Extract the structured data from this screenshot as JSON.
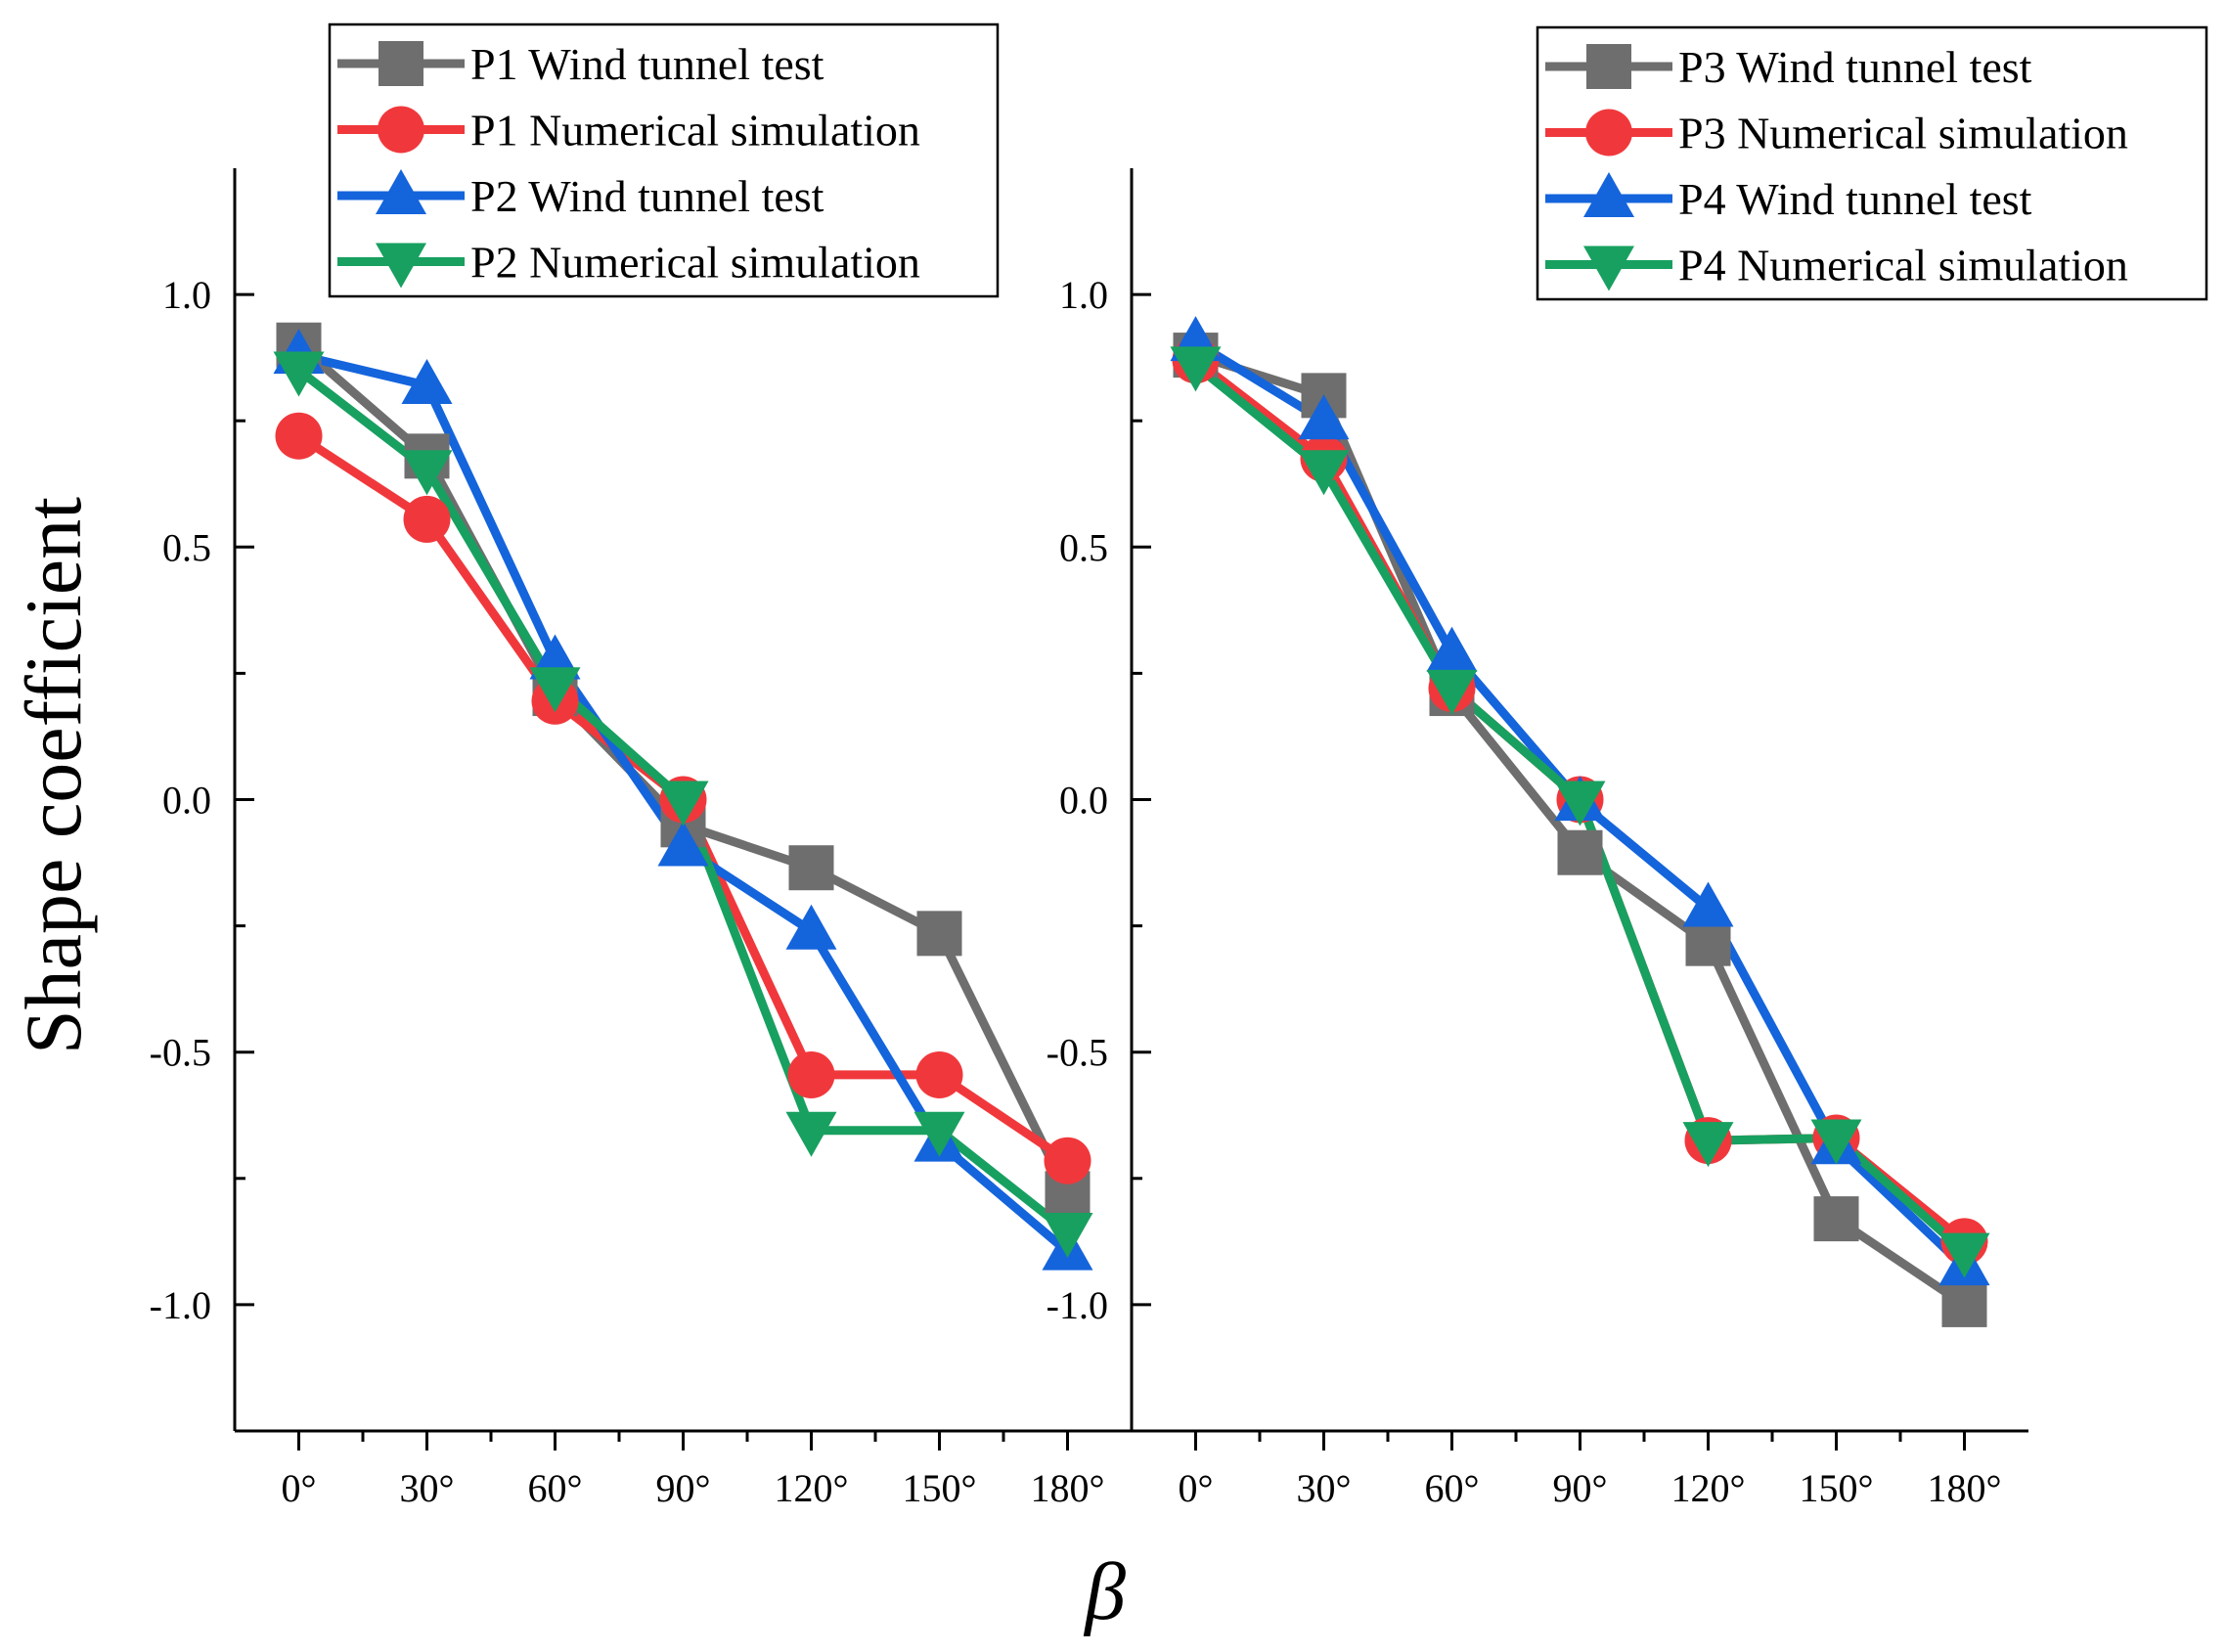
{
  "figure": {
    "ylabel": "Shape coefficient",
    "xlabel": "β"
  },
  "chart_data": [
    {
      "type": "line",
      "panel": "left",
      "categories": [
        "0°",
        "30°",
        "60°",
        "90°",
        "120°",
        "150°",
        "180°"
      ],
      "x": [
        0,
        30,
        60,
        90,
        120,
        150,
        180
      ],
      "xlim": [
        -15,
        195
      ],
      "ylim": [
        -1.25,
        1.25
      ],
      "yticks": [
        1.0,
        0.5,
        0.0,
        -0.5,
        -1.0
      ],
      "ytick_labels": [
        "1.0",
        "0.5",
        "0.0",
        "-0.5",
        "-1.0"
      ],
      "legend_position": "top-right",
      "series": [
        {
          "name": "P1 Wind tunnel test",
          "color": "#6e6e6e",
          "marker": "square",
          "values": [
            0.9,
            0.68,
            0.21,
            -0.05,
            -0.135,
            -0.265,
            -0.78
          ]
        },
        {
          "name": "P1 Numerical simulation",
          "color": "#f0383c",
          "marker": "circle",
          "values": [
            0.72,
            0.555,
            0.195,
            0.0,
            -0.545,
            -0.545,
            -0.715
          ]
        },
        {
          "name": "P2 Wind tunnel test",
          "color": "#1464dc",
          "marker": "triangle-up",
          "values": [
            0.88,
            0.82,
            0.275,
            -0.095,
            -0.26,
            -0.68,
            -0.895
          ]
        },
        {
          "name": "P2 Numerical simulation",
          "color": "#18a060",
          "marker": "triangle-down",
          "values": [
            0.85,
            0.655,
            0.225,
            0.0,
            -0.655,
            -0.655,
            -0.855
          ]
        }
      ]
    },
    {
      "type": "line",
      "panel": "right",
      "categories": [
        "0°",
        "30°",
        "60°",
        "90°",
        "120°",
        "150°",
        "180°"
      ],
      "x": [
        0,
        30,
        60,
        90,
        120,
        150,
        180
      ],
      "xlim": [
        -15,
        195
      ],
      "ylim": [
        -1.25,
        1.25
      ],
      "yticks": [
        1.0,
        0.5,
        0.0,
        -0.5,
        -1.0
      ],
      "ytick_labels": [
        "1.0",
        "0.5",
        "0.0",
        "-0.5",
        "-1.0"
      ],
      "legend_position": "top-right",
      "series": [
        {
          "name": "P3 Wind tunnel test",
          "color": "#6e6e6e",
          "marker": "square",
          "values": [
            0.88,
            0.8,
            0.21,
            -0.105,
            -0.285,
            -0.83,
            -1.0
          ]
        },
        {
          "name": "P3 Numerical simulation",
          "color": "#f0383c",
          "marker": "circle",
          "values": [
            0.87,
            0.675,
            0.22,
            0.0,
            -0.675,
            -0.67,
            -0.875
          ]
        },
        {
          "name": "P4 Wind tunnel test",
          "color": "#1464dc",
          "marker": "triangle-up",
          "values": [
            0.905,
            0.75,
            0.29,
            -0.005,
            -0.215,
            -0.685,
            -0.925
          ]
        },
        {
          "name": "P4 Numerical simulation",
          "color": "#18a060",
          "marker": "triangle-down",
          "values": [
            0.86,
            0.655,
            0.22,
            0.0,
            -0.675,
            -0.67,
            -0.895
          ]
        }
      ]
    }
  ]
}
